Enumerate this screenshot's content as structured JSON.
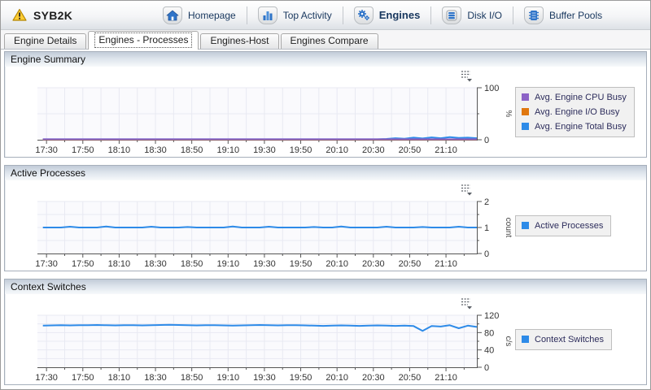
{
  "header": {
    "instance_name": "SYB2K",
    "warning_icon": "warning-icon",
    "nav": [
      {
        "label": "Homepage",
        "icon": "home-icon",
        "active": false
      },
      {
        "label": "Top Activity",
        "icon": "bar-chart-icon",
        "active": false
      },
      {
        "label": "Engines",
        "icon": "gears-icon",
        "active": true
      },
      {
        "label": "Disk I/O",
        "icon": "disk-icon",
        "active": false
      },
      {
        "label": "Buffer Pools",
        "icon": "buffer-pool-icon",
        "active": false
      }
    ]
  },
  "tabs": [
    {
      "label": "Engine Details",
      "active": false
    },
    {
      "label": "Engines - Processes",
      "active": true
    },
    {
      "label": "Engines-Host",
      "active": false
    },
    {
      "label": "Engines Compare",
      "active": false
    }
  ],
  "icons": {
    "chart_menu": "chart-options-icon"
  },
  "colors": {
    "nav_text": "#17365D",
    "legend_text": "#2D2D5C",
    "axis": "#555555",
    "grid": "#E8E9F2",
    "series_purple": "#8C63C6",
    "series_orange": "#E0770F",
    "series_blue": "#2E8BE8"
  },
  "chart_data": [
    {
      "type": "line",
      "title": "Engine Summary",
      "y_unit": "%",
      "ylim": [
        0,
        100
      ],
      "y_major_ticks": [
        0,
        100
      ],
      "y_minor_ticks": [
        50
      ],
      "y_grid": [
        50,
        100
      ],
      "x_start": 5,
      "x_span": 242,
      "x_minor_step": 10,
      "x_major_step": 20,
      "data_x_start": 3,
      "x_tick_labels": [
        "17:30",
        "17:50",
        "18:10",
        "18:30",
        "18:50",
        "19:10",
        "19:30",
        "19:50",
        "20:10",
        "20:30",
        "20:50",
        "21:10"
      ],
      "legend_position": "right",
      "series": [
        {
          "name": "Avg. Engine CPU Busy",
          "color": "#8C63C6",
          "values": [
            1,
            1,
            1,
            1,
            1,
            1,
            1,
            1,
            1,
            1,
            1,
            1,
            1,
            1,
            1,
            1,
            1,
            1,
            1,
            1,
            1,
            1,
            1,
            1,
            1,
            1,
            1,
            1,
            1,
            1,
            1,
            1,
            1,
            1,
            1,
            1,
            1,
            1,
            1,
            1,
            1,
            1,
            1,
            1,
            1,
            1,
            1,
            1,
            1
          ]
        },
        {
          "name": "Avg. Engine I/O Busy",
          "color": "#E0770F",
          "values": [
            0.6,
            0.6,
            0.6,
            0.6,
            0.6,
            0.6,
            0.6,
            0.6,
            0.6,
            0.6,
            0.6,
            0.6,
            0.6,
            0.6,
            0.6,
            0.6,
            0.6,
            0.6,
            0.6,
            0.6,
            0.6,
            0.6,
            0.6,
            0.6,
            0.6,
            0.6,
            0.6,
            0.6,
            0.6,
            0.6,
            0.6,
            0.6,
            0.6,
            0.6,
            0.6,
            0.6,
            0.6,
            0.6,
            0.6,
            0.6,
            0.6,
            0.6,
            0.6,
            0.6,
            0.6,
            0.6,
            0.6,
            0.6,
            0.6
          ]
        },
        {
          "name": "Avg. Engine Total Busy",
          "color": "#2E8BE8",
          "values": [
            1,
            1,
            1,
            1,
            1,
            1,
            1,
            1,
            1,
            1,
            1,
            1,
            1,
            1,
            1,
            1,
            1,
            1,
            1,
            1,
            1,
            1,
            1,
            1,
            1,
            1,
            1,
            1,
            1,
            1,
            1,
            1,
            1,
            1,
            1,
            1,
            1,
            1,
            1.5,
            3,
            2,
            4,
            2.5,
            4.5,
            3,
            5,
            3.5,
            4,
            3
          ]
        }
      ]
    },
    {
      "type": "line",
      "title": "Active Processes",
      "y_unit": "count",
      "ylim": [
        0,
        2
      ],
      "y_major_ticks": [
        0,
        1,
        2
      ],
      "y_minor_ticks": [
        0.5,
        1.5
      ],
      "y_grid": [
        0.5,
        1,
        1.5,
        2
      ],
      "x_start": 5,
      "x_span": 242,
      "x_minor_step": 10,
      "x_major_step": 20,
      "data_x_start": 3,
      "x_tick_labels": [
        "17:30",
        "17:50",
        "18:10",
        "18:30",
        "18:50",
        "19:10",
        "19:30",
        "19:50",
        "20:10",
        "20:30",
        "20:50",
        "21:10"
      ],
      "legend_position": "right",
      "series": [
        {
          "name": "Active Processes",
          "color": "#2E8BE8",
          "values": [
            1,
            1,
            1,
            1.03,
            1,
            1,
            1,
            1.04,
            1,
            1,
            1,
            1,
            1.03,
            1,
            1,
            1,
            1.02,
            1,
            1,
            1,
            1,
            1.04,
            1,
            1,
            1,
            1.03,
            1,
            1,
            1,
            1,
            1.02,
            1,
            1,
            1.04,
            1,
            1,
            1,
            1,
            1.03,
            1,
            1,
            1,
            1.02,
            1,
            1,
            1,
            1.03,
            1,
            1
          ]
        }
      ]
    },
    {
      "type": "line",
      "title": "Context Switches",
      "y_unit": "c/s",
      "ylim": [
        0,
        120
      ],
      "y_major_ticks": [
        0,
        40,
        80,
        120
      ],
      "y_minor_ticks": [
        20,
        60,
        100
      ],
      "y_grid": [
        20,
        40,
        60,
        80,
        100,
        120
      ],
      "x_start": 5,
      "x_span": 242,
      "x_minor_step": 10,
      "x_major_step": 20,
      "data_x_start": 3,
      "x_tick_labels": [
        "17:30",
        "17:50",
        "18:10",
        "18:30",
        "18:50",
        "19:10",
        "19:30",
        "19:50",
        "20:10",
        "20:30",
        "20:50",
        "21:10"
      ],
      "legend_position": "right",
      "series": [
        {
          "name": "Context Switches",
          "color": "#2E8BE8",
          "values": [
            96,
            96.5,
            97,
            96.5,
            97,
            97,
            97.5,
            97,
            96.5,
            97,
            97,
            96.5,
            97,
            97.5,
            98,
            97.5,
            97,
            96.5,
            97,
            97,
            96.5,
            96,
            96.5,
            97,
            97.5,
            97,
            96.5,
            97,
            97,
            96.5,
            96,
            95.5,
            96,
            96.5,
            96,
            95.5,
            96,
            96.5,
            96,
            95.5,
            96,
            95,
            84,
            95,
            94,
            97,
            90,
            96,
            93
          ]
        }
      ]
    }
  ]
}
